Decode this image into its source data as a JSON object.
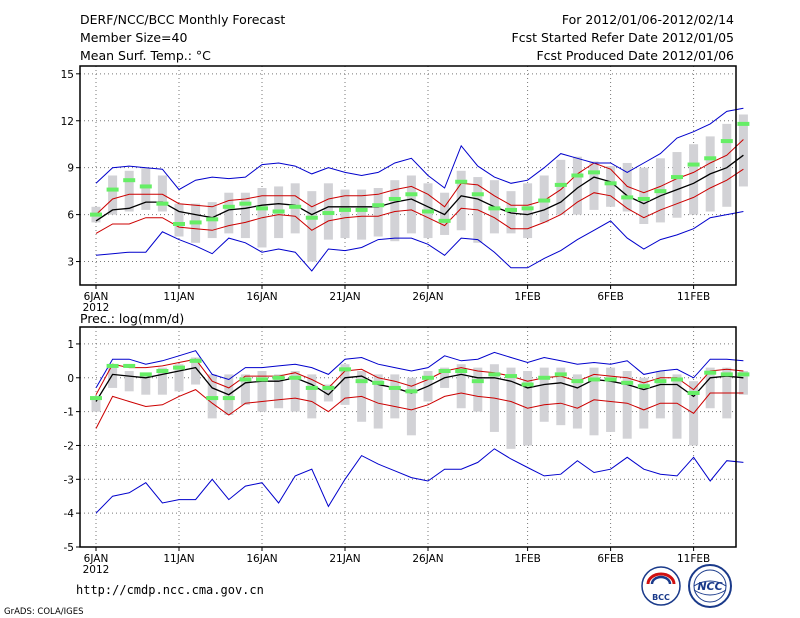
{
  "header": {
    "title": "DERF/NCC/BCC Monthly Forecast",
    "member_size": "Member Size=40",
    "variable": "Mean Surf. Temp.: °C",
    "period": "For 2012/01/06-2012/02/14",
    "started": "Fcst Started Refer Date 2012/01/05",
    "produced": "Fcst Produced Date 2012/01/06"
  },
  "footer": {
    "url": "http://cmdp.ncc.cma.gov.cn",
    "credit": "GrADS: COLA/IGES",
    "logo_bcc": "BCC",
    "logo_ncc": "NCC"
  },
  "colors": {
    "median": "#000000",
    "inner_band": "#cc0000",
    "outer_band": "#0000cc",
    "box": "#d2d2d6",
    "mean": "#66ee66"
  },
  "chart_data": [
    {
      "type": "line",
      "title": "Mean Surf. Temp.: °C",
      "xlabel": "",
      "ylabel": "°C",
      "x_ticks": [
        "6JAN",
        "11JAN",
        "16JAN",
        "21JAN",
        "26JAN",
        "1FEB",
        "6FEB",
        "11FEB"
      ],
      "x_tick_index": [
        0,
        5,
        10,
        15,
        20,
        26,
        31,
        36
      ],
      "x_year_label": "2012",
      "ylim": [
        1.5,
        15.5
      ],
      "y_ticks": [
        3,
        6,
        9,
        12,
        15
      ],
      "grid": true,
      "n_days": 40,
      "series": [
        {
          "name": "median",
          "values": [
            5.6,
            6.3,
            6.4,
            6.8,
            6.8,
            6.2,
            6.0,
            5.8,
            6.3,
            6.4,
            6.6,
            6.7,
            6.6,
            6.0,
            6.5,
            6.5,
            6.5,
            6.5,
            6.8,
            7.0,
            6.5,
            6.0,
            7.2,
            7.0,
            6.5,
            6.1,
            6.0,
            6.3,
            6.8,
            7.7,
            8.4,
            8.1,
            7.2,
            6.7,
            7.2,
            7.6,
            8.0,
            8.6,
            9.0,
            9.8
          ]
        },
        {
          "name": "upper_inner",
          "values": [
            6.0,
            7.0,
            7.3,
            7.3,
            7.3,
            6.7,
            6.6,
            6.5,
            6.9,
            7.0,
            7.2,
            7.2,
            7.2,
            6.5,
            7.0,
            7.2,
            7.2,
            7.3,
            7.6,
            7.8,
            7.3,
            6.5,
            8.0,
            7.9,
            7.2,
            6.6,
            6.6,
            6.9,
            7.6,
            8.6,
            9.3,
            8.9,
            7.8,
            7.4,
            7.8,
            8.3,
            8.7,
            9.3,
            9.8,
            10.8
          ]
        },
        {
          "name": "lower_inner",
          "values": [
            4.8,
            5.4,
            5.4,
            5.8,
            5.8,
            5.2,
            5.1,
            5.0,
            5.3,
            5.5,
            5.8,
            6.0,
            5.9,
            5.0,
            5.6,
            5.8,
            5.9,
            5.9,
            6.2,
            6.3,
            5.8,
            5.3,
            6.4,
            6.3,
            5.8,
            5.1,
            5.1,
            5.5,
            6.0,
            6.8,
            7.4,
            7.2,
            6.4,
            5.8,
            6.3,
            6.7,
            7.1,
            7.7,
            8.2,
            8.9
          ]
        },
        {
          "name": "upper_outer",
          "values": [
            8.0,
            9.0,
            9.1,
            9.0,
            8.9,
            7.6,
            8.2,
            8.4,
            8.3,
            8.4,
            9.2,
            9.3,
            9.1,
            8.6,
            9.0,
            8.7,
            8.5,
            8.7,
            9.3,
            9.6,
            8.5,
            7.7,
            10.4,
            9.1,
            8.4,
            8.0,
            8.2,
            9.0,
            9.9,
            9.6,
            9.3,
            9.3,
            8.7,
            9.3,
            9.9,
            10.9,
            11.3,
            11.8,
            12.6,
            12.8
          ]
        },
        {
          "name": "lower_outer",
          "values": [
            3.4,
            3.5,
            3.6,
            3.6,
            4.9,
            4.4,
            4.0,
            3.5,
            4.5,
            4.2,
            3.6,
            3.8,
            3.6,
            2.4,
            3.8,
            3.7,
            3.9,
            4.4,
            4.5,
            4.5,
            4.1,
            3.4,
            4.5,
            4.4,
            3.6,
            2.6,
            2.6,
            3.2,
            3.7,
            4.4,
            5.0,
            5.6,
            4.5,
            3.8,
            4.4,
            4.7,
            5.1,
            5.8,
            6.0,
            6.2
          ]
        }
      ],
      "box_low": [
        5.5,
        6.0,
        6.2,
        6.3,
        6.2,
        4.6,
        4.2,
        4.5,
        4.8,
        4.5,
        3.9,
        4.5,
        4.8,
        3.0,
        4.4,
        4.5,
        4.4,
        4.6,
        4.3,
        4.8,
        4.5,
        4.7,
        5.0,
        4.2,
        4.8,
        4.8,
        4.5,
        5.5,
        6.0,
        6.0,
        6.3,
        6.5,
        6.2,
        5.4,
        5.5,
        5.8,
        6.0,
        6.2,
        6.5,
        7.8
      ],
      "box_high": [
        6.5,
        8.5,
        8.8,
        9.0,
        8.5,
        6.7,
        6.7,
        6.8,
        7.4,
        7.4,
        7.7,
        7.8,
        8.0,
        7.5,
        8.0,
        7.6,
        7.6,
        7.7,
        8.2,
        8.5,
        8.0,
        7.4,
        8.8,
        8.4,
        8.2,
        7.5,
        8.0,
        8.5,
        9.5,
        9.7,
        9.4,
        9.1,
        9.3,
        9.0,
        9.6,
        10.0,
        10.5,
        11.0,
        11.8,
        12.4
      ],
      "mean": [
        6.0,
        7.6,
        8.2,
        7.8,
        6.7,
        5.4,
        5.5,
        5.7,
        6.5,
        6.7,
        6.4,
        6.2,
        6.5,
        5.8,
        6.1,
        6.3,
        6.3,
        6.6,
        7.0,
        7.3,
        6.2,
        5.6,
        8.1,
        7.3,
        6.4,
        6.3,
        6.4,
        6.9,
        7.9,
        8.5,
        8.7,
        8.0,
        7.1,
        7.0,
        7.5,
        8.4,
        9.2,
        9.6,
        10.7,
        11.8
      ]
    },
    {
      "type": "line",
      "title": "Prec.: log(mm/d)",
      "xlabel": "",
      "ylabel": "log(mm/d)",
      "x_ticks": [
        "6JAN",
        "11JAN",
        "16JAN",
        "21JAN",
        "26JAN",
        "1FEB",
        "6FEB",
        "11FEB"
      ],
      "x_tick_index": [
        0,
        5,
        10,
        15,
        20,
        26,
        31,
        36
      ],
      "x_year_label": "2012",
      "ylim": [
        -5,
        1.5
      ],
      "y_ticks": [
        -5,
        -4,
        -3,
        -2,
        -1,
        0,
        1
      ],
      "grid": true,
      "n_days": 40,
      "series": [
        {
          "name": "median",
          "values": [
            -0.7,
            0.1,
            0.05,
            0.0,
            0.1,
            0.2,
            0.3,
            -0.3,
            -0.5,
            -0.15,
            -0.1,
            -0.1,
            0.0,
            -0.2,
            -0.5,
            0.0,
            0.05,
            -0.2,
            -0.3,
            -0.45,
            -0.25,
            0.0,
            0.1,
            0.0,
            0.0,
            -0.1,
            -0.3,
            -0.2,
            -0.15,
            -0.3,
            -0.05,
            -0.1,
            -0.2,
            -0.35,
            -0.2,
            -0.2,
            -0.55,
            0.0,
            0.05,
            0.0
          ]
        },
        {
          "name": "upper_inner",
          "values": [
            -0.5,
            0.4,
            0.3,
            0.3,
            0.35,
            0.45,
            0.55,
            -0.1,
            -0.3,
            0.05,
            0.05,
            0.05,
            0.15,
            -0.05,
            -0.3,
            0.2,
            0.25,
            0.0,
            -0.1,
            -0.25,
            -0.05,
            0.2,
            0.3,
            0.2,
            0.15,
            0.05,
            -0.1,
            0.0,
            0.05,
            -0.1,
            0.1,
            0.05,
            0.0,
            -0.15,
            0.0,
            0.0,
            -0.35,
            0.2,
            0.25,
            0.2
          ]
        },
        {
          "name": "lower_inner",
          "values": [
            -1.5,
            -0.55,
            -0.7,
            -0.85,
            -0.8,
            -0.55,
            -0.35,
            -0.75,
            -1.1,
            -0.75,
            -0.7,
            -0.65,
            -0.6,
            -0.7,
            -1.0,
            -0.6,
            -0.55,
            -0.75,
            -0.85,
            -0.95,
            -0.8,
            -0.55,
            -0.45,
            -0.55,
            -0.6,
            -0.7,
            -0.9,
            -0.8,
            -0.75,
            -0.9,
            -0.65,
            -0.7,
            -0.75,
            -0.95,
            -0.75,
            -0.75,
            -1.05,
            -0.45,
            -0.45,
            -0.45
          ]
        },
        {
          "name": "upper_outer",
          "values": [
            -0.3,
            0.55,
            0.55,
            0.4,
            0.5,
            0.65,
            0.8,
            0.1,
            -0.05,
            0.3,
            0.3,
            0.35,
            0.4,
            0.3,
            0.1,
            0.55,
            0.6,
            0.4,
            0.3,
            0.2,
            0.3,
            0.65,
            0.5,
            0.55,
            0.75,
            0.6,
            0.45,
            0.6,
            0.5,
            0.4,
            0.45,
            0.4,
            0.5,
            0.1,
            0.2,
            0.25,
            0.0,
            0.55,
            0.55,
            0.5
          ]
        },
        {
          "name": "lower_outer",
          "values": [
            -4.0,
            -3.5,
            -3.4,
            -3.1,
            -3.7,
            -3.6,
            -3.6,
            -3.0,
            -3.6,
            -3.2,
            -3.1,
            -3.7,
            -2.9,
            -2.7,
            -3.8,
            -3.0,
            -2.3,
            -2.55,
            -2.75,
            -2.95,
            -3.05,
            -2.7,
            -2.7,
            -2.5,
            -2.1,
            -2.4,
            -2.65,
            -2.9,
            -2.85,
            -2.45,
            -2.8,
            -2.7,
            -2.35,
            -2.7,
            -2.85,
            -2.9,
            -2.35,
            -3.05,
            -2.45,
            -2.5
          ]
        }
      ],
      "box_low": [
        -1.0,
        -0.3,
        -0.4,
        -0.5,
        -0.5,
        -0.4,
        -0.2,
        -1.2,
        -1.1,
        -0.8,
        -1.0,
        -0.9,
        -1.0,
        -1.2,
        -0.7,
        -0.8,
        -1.3,
        -1.5,
        -1.2,
        -1.7,
        -0.7,
        -0.3,
        -0.9,
        -1.0,
        -1.6,
        -2.1,
        -2.0,
        -1.3,
        -1.4,
        -1.5,
        -1.7,
        -1.6,
        -1.8,
        -1.5,
        -1.2,
        -1.8,
        -2.0,
        -0.9,
        -1.2,
        -0.5
      ],
      "box_high": [
        -0.6,
        0.3,
        0.2,
        0.1,
        0.3,
        0.4,
        0.6,
        0.1,
        0.1,
        0.1,
        0.2,
        0.1,
        0.2,
        0.1,
        -0.2,
        0.4,
        0.2,
        0.1,
        0.1,
        0.0,
        0.2,
        0.3,
        0.4,
        0.3,
        0.4,
        0.3,
        0.2,
        0.3,
        0.3,
        0.1,
        0.3,
        0.3,
        0.2,
        0.0,
        0.2,
        0.1,
        -0.1,
        0.3,
        0.3,
        0.2
      ],
      "mean": [
        -0.6,
        0.35,
        0.35,
        0.1,
        0.2,
        0.3,
        0.5,
        -0.6,
        -0.6,
        -0.05,
        -0.05,
        0.0,
        0.0,
        -0.3,
        -0.3,
        0.25,
        -0.1,
        -0.15,
        -0.3,
        -0.4,
        0.0,
        0.2,
        0.2,
        -0.1,
        0.1,
        0.05,
        -0.2,
        0.0,
        0.1,
        -0.1,
        -0.05,
        -0.05,
        -0.15,
        -0.25,
        -0.1,
        -0.05,
        -0.45,
        0.15,
        0.1,
        0.1
      ]
    }
  ]
}
